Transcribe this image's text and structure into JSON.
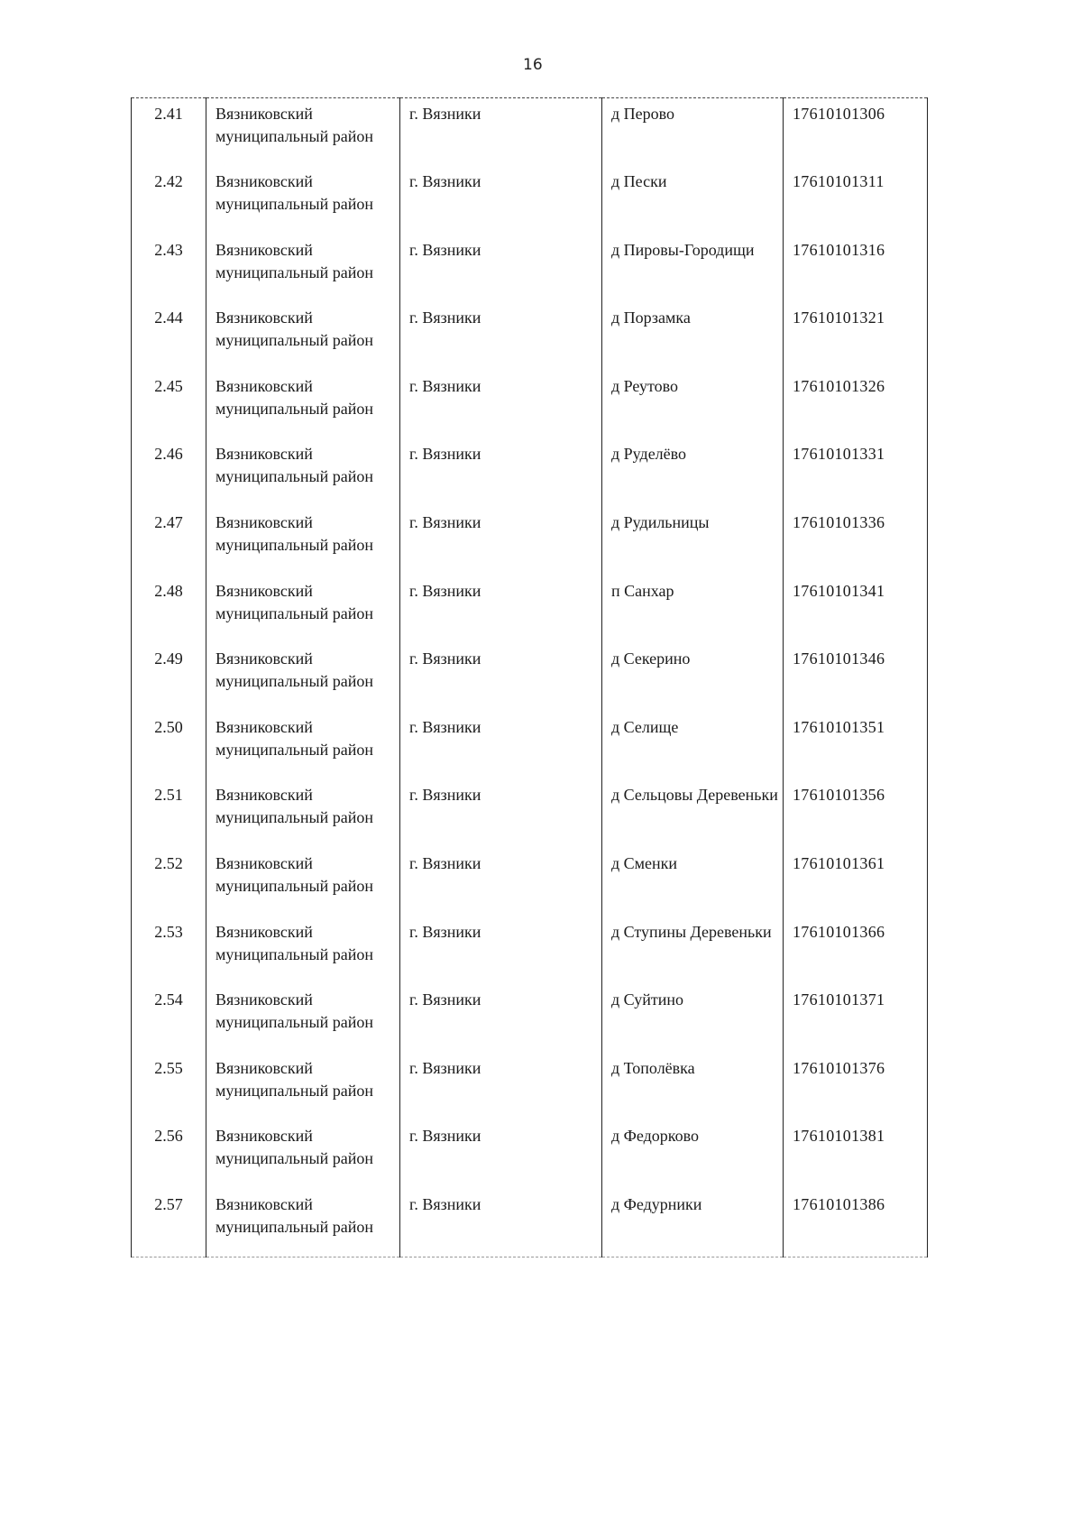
{
  "page_number": "16",
  "rows": [
    {
      "num": "2.41",
      "district": "Вязниковский муниципальный район",
      "city": "г. Вязники",
      "settlement": "д Перово",
      "code": "17610101306"
    },
    {
      "num": "2.42",
      "district": "Вязниковский муниципальный район",
      "city": "г. Вязники",
      "settlement": "д Пески",
      "code": "17610101311"
    },
    {
      "num": "2.43",
      "district": "Вязниковский муниципальный район",
      "city": "г. Вязники",
      "settlement": "д Пировы-Городищи",
      "code": "17610101316"
    },
    {
      "num": "2.44",
      "district": "Вязниковский муниципальный район",
      "city": "г. Вязники",
      "settlement": "д Порзамка",
      "code": "17610101321"
    },
    {
      "num": "2.45",
      "district": "Вязниковский муниципальный район",
      "city": "г. Вязники",
      "settlement": "д Реутово",
      "code": "17610101326"
    },
    {
      "num": "2.46",
      "district": "Вязниковский муниципальный район",
      "city": "г. Вязники",
      "settlement": "д Руделёво",
      "code": "17610101331"
    },
    {
      "num": "2.47",
      "district": "Вязниковский муниципальный район",
      "city": "г. Вязники",
      "settlement": "д Рудильницы",
      "code": "17610101336"
    },
    {
      "num": "2.48",
      "district": "Вязниковский муниципальный район",
      "city": "г. Вязники",
      "settlement": "п Санхар",
      "code": "17610101341"
    },
    {
      "num": "2.49",
      "district": "Вязниковский муниципальный район",
      "city": "г. Вязники",
      "settlement": "д Секерино",
      "code": "17610101346"
    },
    {
      "num": "2.50",
      "district": "Вязниковский муниципальный район",
      "city": "г. Вязники",
      "settlement": "д Селище",
      "code": "17610101351"
    },
    {
      "num": "2.51",
      "district": "Вязниковский муниципальный район",
      "city": "г. Вязники",
      "settlement": "д Сельцовы Деревеньки",
      "code": "17610101356"
    },
    {
      "num": "2.52",
      "district": "Вязниковский муниципальный район",
      "city": "г. Вязники",
      "settlement": "д Сменки",
      "code": "17610101361"
    },
    {
      "num": "2.53",
      "district": "Вязниковский муниципальный район",
      "city": "г. Вязники",
      "settlement": "д Ступины Деревеньки",
      "code": "17610101366"
    },
    {
      "num": "2.54",
      "district": "Вязниковский муниципальный район",
      "city": "г. Вязники",
      "settlement": "д Суйтино",
      "code": "17610101371"
    },
    {
      "num": "2.55",
      "district": "Вязниковский муниципальный район",
      "city": "г. Вязники",
      "settlement": "д Тополёвка",
      "code": "17610101376"
    },
    {
      "num": "2.56",
      "district": "Вязниковский муниципальный район",
      "city": "г. Вязники",
      "settlement": "д Федорково",
      "code": "17610101381"
    },
    {
      "num": "2.57",
      "district": "Вязниковский муниципальный район",
      "city": "г. Вязники",
      "settlement": "д Федурники",
      "code": "17610101386"
    }
  ]
}
